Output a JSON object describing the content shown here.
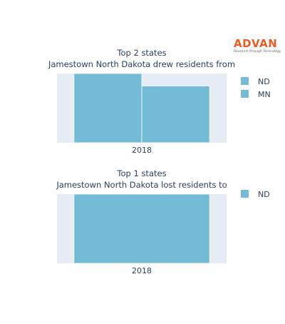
{
  "logo": {
    "name": "ADVAN",
    "tagline": "Research through Technology"
  },
  "colors": {
    "plot_bg": "#e5ecf6",
    "bar": "#74bcd6",
    "bar_edge": "#ffffff",
    "text": "#2a3f5f",
    "brand": "#f15a24"
  },
  "chart_data": [
    {
      "type": "bar",
      "title": "Top 2 states",
      "subtitle": "Jamestown North Dakota drew residents from",
      "categories": [
        "2018"
      ],
      "series": [
        {
          "name": "ND",
          "values": [
            1.0
          ]
        },
        {
          "name": "MN",
          "values": [
            0.82
          ]
        }
      ],
      "ylim": [
        0,
        1.0
      ],
      "grid": false,
      "legend": "right"
    },
    {
      "type": "bar",
      "title": "Top 1 states",
      "subtitle": "Jamestown North Dakota lost residents to",
      "categories": [
        "2018"
      ],
      "series": [
        {
          "name": "ND",
          "values": [
            1.0
          ]
        }
      ],
      "ylim": [
        0,
        1.0
      ],
      "grid": false,
      "legend": "right"
    }
  ]
}
